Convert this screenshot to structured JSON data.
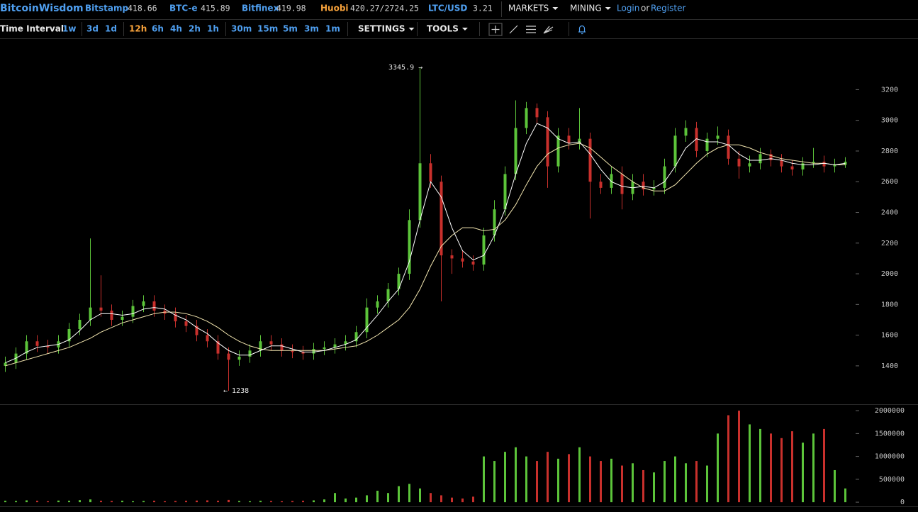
{
  "header": {
    "brand": "BitcoinWisdom",
    "exchanges": [
      {
        "name": "Bitstamp",
        "price": "418.66"
      },
      {
        "name": "BTC-e",
        "price": "415.89"
      },
      {
        "name": "Bitfinex",
        "price": "419.98"
      },
      {
        "name": "Huobi",
        "price": "420.27/2724.25"
      },
      {
        "name": "LTC/USD",
        "price": "3.21"
      }
    ],
    "menus": [
      "MARKETS",
      "MINING"
    ],
    "login": "Login",
    "or": "or",
    "register": "Register"
  },
  "toolbar": {
    "label": "Time Interval:",
    "intervals": [
      "1w",
      "3d",
      "1d",
      "12h",
      "6h",
      "4h",
      "2h",
      "1h",
      "30m",
      "15m",
      "5m",
      "3m",
      "1m"
    ],
    "selected": 3,
    "menus": [
      "SETTINGS",
      "TOOLS"
    ]
  },
  "chart_data": {
    "type": "candlestick",
    "up_color": "#5cc43a",
    "down_color": "#c9302c",
    "ma_colors": [
      "#ffffff",
      "#f3e6b0"
    ],
    "ylim": [
      1150,
      3530
    ],
    "yticks": [
      1400,
      1600,
      1800,
      2000,
      2200,
      2400,
      2600,
      2800,
      3000,
      3200
    ],
    "volume_ylim": [
      -60000,
      2110000
    ],
    "volume_yticks": [
      0,
      500000,
      1000000,
      1500000,
      2000000
    ],
    "annotations": [
      {
        "value": 3345.9,
        "label": "3345.9 →"
      },
      {
        "value": 1238,
        "label": "← 1238"
      }
    ],
    "open": [
      1400,
      1420,
      1480,
      1560,
      1530,
      1520,
      1560,
      1640,
      1700,
      1780,
      1760,
      1700,
      1720,
      1790,
      1820,
      1760,
      1740,
      1690,
      1660,
      1600,
      1560,
      1480,
      1440,
      1460,
      1500,
      1560,
      1540,
      1500,
      1490,
      1480,
      1510,
      1520,
      1540,
      1560,
      1620,
      1780,
      1820,
      1900,
      2000,
      2350,
      2720,
      2600,
      2120,
      2100,
      2080,
      2060,
      2250,
      2420,
      2650,
      2950,
      3080,
      3020,
      2700,
      2900,
      2850,
      2880,
      2600,
      2560,
      2650,
      2520,
      2600,
      2550,
      2560,
      2700,
      2900,
      2950,
      2800,
      2880,
      2900,
      2750,
      2700,
      2720,
      2780,
      2740,
      2700,
      2680,
      2720,
      2730,
      2700,
      2710
    ],
    "high": [
      1460,
      1520,
      1600,
      1600,
      1570,
      1600,
      1680,
      1740,
      2230,
      1990,
      1800,
      1760,
      1830,
      1860,
      1860,
      1800,
      1780,
      1730,
      1700,
      1640,
      1600,
      1520,
      1500,
      1540,
      1600,
      1600,
      1580,
      1540,
      1530,
      1550,
      1560,
      1580,
      1600,
      1660,
      1840,
      1860,
      1940,
      2040,
      2420,
      3345.9,
      2780,
      2640,
      2160,
      2150,
      2120,
      2300,
      2480,
      2700,
      3130,
      3120,
      3110,
      3060,
      2950,
      2950,
      3080,
      2920,
      2650,
      2700,
      2700,
      2650,
      2650,
      2610,
      2750,
      2950,
      3000,
      2990,
      2920,
      2960,
      2940,
      2800,
      2770,
      2820,
      2810,
      2780,
      2740,
      2760,
      2820,
      2770,
      2750,
      2760
    ],
    "low": [
      1360,
      1380,
      1440,
      1490,
      1480,
      1480,
      1520,
      1600,
      1660,
      1720,
      1660,
      1660,
      1680,
      1750,
      1720,
      1700,
      1650,
      1620,
      1560,
      1520,
      1440,
      1238,
      1400,
      1420,
      1460,
      1500,
      1460,
      1450,
      1440,
      1440,
      1470,
      1480,
      1500,
      1520,
      1580,
      1740,
      1780,
      1860,
      1960,
      2300,
      2560,
      1820,
      2000,
      2040,
      2020,
      2020,
      2210,
      2380,
      2610,
      2910,
      2980,
      2560,
      2660,
      2810,
      2810,
      2360,
      2520,
      2520,
      2420,
      2480,
      2510,
      2510,
      2520,
      2660,
      2860,
      2760,
      2760,
      2840,
      2710,
      2620,
      2660,
      2680,
      2700,
      2660,
      2640,
      2640,
      2690,
      2660,
      2660,
      2690
    ],
    "close": [
      1420,
      1480,
      1560,
      1530,
      1520,
      1560,
      1640,
      1700,
      1780,
      1760,
      1700,
      1720,
      1790,
      1820,
      1760,
      1740,
      1690,
      1660,
      1600,
      1560,
      1480,
      1440,
      1460,
      1500,
      1560,
      1540,
      1500,
      1490,
      1480,
      1510,
      1520,
      1540,
      1560,
      1620,
      1780,
      1820,
      1900,
      2000,
      2350,
      2720,
      2600,
      2120,
      2100,
      2080,
      2060,
      2250,
      2420,
      2650,
      2950,
      3080,
      3020,
      2700,
      2900,
      2850,
      2880,
      2600,
      2560,
      2650,
      2520,
      2600,
      2550,
      2560,
      2700,
      2900,
      2950,
      2800,
      2880,
      2900,
      2750,
      2700,
      2720,
      2780,
      2740,
      2700,
      2680,
      2720,
      2730,
      2700,
      2710,
      2730
    ],
    "volume": [
      30000,
      25000,
      40000,
      30000,
      20000,
      35000,
      30000,
      45000,
      60000,
      30000,
      25000,
      30000,
      20000,
      25000,
      30000,
      20000,
      25000,
      30000,
      35000,
      40000,
      30000,
      50000,
      25000,
      20000,
      30000,
      25000,
      20000,
      25000,
      30000,
      40000,
      60000,
      200000,
      80000,
      100000,
      150000,
      250000,
      200000,
      350000,
      400000,
      300000,
      200000,
      150000,
      100000,
      80000,
      120000,
      1000000,
      900000,
      1100000,
      1200000,
      1000000,
      900000,
      1100000,
      950000,
      1050000,
      1200000,
      1000000,
      900000,
      950000,
      800000,
      850000,
      700000,
      650000,
      900000,
      1000000,
      850000,
      900000,
      800000,
      1500000,
      1900000,
      2000000,
      1700000,
      1600000,
      1500000,
      1400000,
      1550000,
      1300000,
      1500000,
      1600000,
      700000,
      300000
    ],
    "ma_fast": [
      1420,
      1450,
      1490,
      1520,
      1530,
      1540,
      1570,
      1630,
      1700,
      1740,
      1740,
      1730,
      1740,
      1770,
      1780,
      1770,
      1730,
      1700,
      1650,
      1610,
      1550,
      1500,
      1470,
      1470,
      1500,
      1530,
      1530,
      1510,
      1490,
      1490,
      1500,
      1520,
      1540,
      1570,
      1650,
      1730,
      1820,
      1900,
      2080,
      2350,
      2600,
      2500,
      2300,
      2150,
      2090,
      2120,
      2250,
      2420,
      2650,
      2850,
      2980,
      2950,
      2880,
      2850,
      2860,
      2780,
      2680,
      2600,
      2570,
      2560,
      2570,
      2560,
      2600,
      2700,
      2820,
      2880,
      2860,
      2860,
      2840,
      2780,
      2740,
      2740,
      2750,
      2740,
      2720,
      2710,
      2710,
      2720,
      2710,
      2720
    ],
    "ma_slow": [
      1400,
      1420,
      1440,
      1460,
      1480,
      1500,
      1520,
      1550,
      1580,
      1620,
      1650,
      1680,
      1700,
      1720,
      1740,
      1750,
      1750,
      1740,
      1720,
      1690,
      1650,
      1600,
      1560,
      1530,
      1510,
      1500,
      1500,
      1500,
      1500,
      1500,
      1500,
      1510,
      1520,
      1530,
      1560,
      1600,
      1650,
      1700,
      1780,
      1900,
      2050,
      2180,
      2250,
      2300,
      2300,
      2280,
      2290,
      2350,
      2450,
      2580,
      2700,
      2780,
      2820,
      2840,
      2850,
      2820,
      2760,
      2700,
      2650,
      2600,
      2560,
      2540,
      2540,
      2580,
      2650,
      2720,
      2780,
      2820,
      2840,
      2840,
      2820,
      2790,
      2770,
      2750,
      2740,
      2730,
      2720,
      2720,
      2710,
      2710
    ]
  }
}
